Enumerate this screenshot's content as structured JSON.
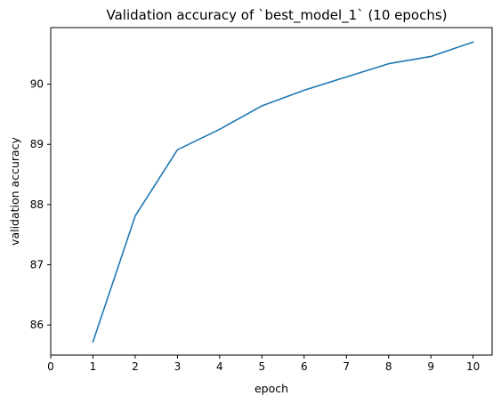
{
  "chart_data": {
    "type": "line",
    "title": "Validation accuracy of `best_model_1` (10 epochs)",
    "xlabel": "epoch",
    "ylabel": "validation accuracy",
    "xlim": [
      0,
      10.45
    ],
    "ylim": [
      85.5,
      90.94
    ],
    "xticks": [
      0,
      1,
      2,
      3,
      4,
      5,
      6,
      7,
      8,
      9,
      10
    ],
    "yticks": [
      86,
      87,
      88,
      89,
      90
    ],
    "grid": false,
    "series": [
      {
        "color": "#1f77b4",
        "x": [
          1,
          2,
          3,
          4,
          5,
          6,
          7,
          8,
          9,
          10
        ],
        "y": [
          85.72,
          87.81,
          88.91,
          89.25,
          89.64,
          89.9,
          90.12,
          90.34,
          90.46,
          90.7
        ]
      }
    ]
  }
}
